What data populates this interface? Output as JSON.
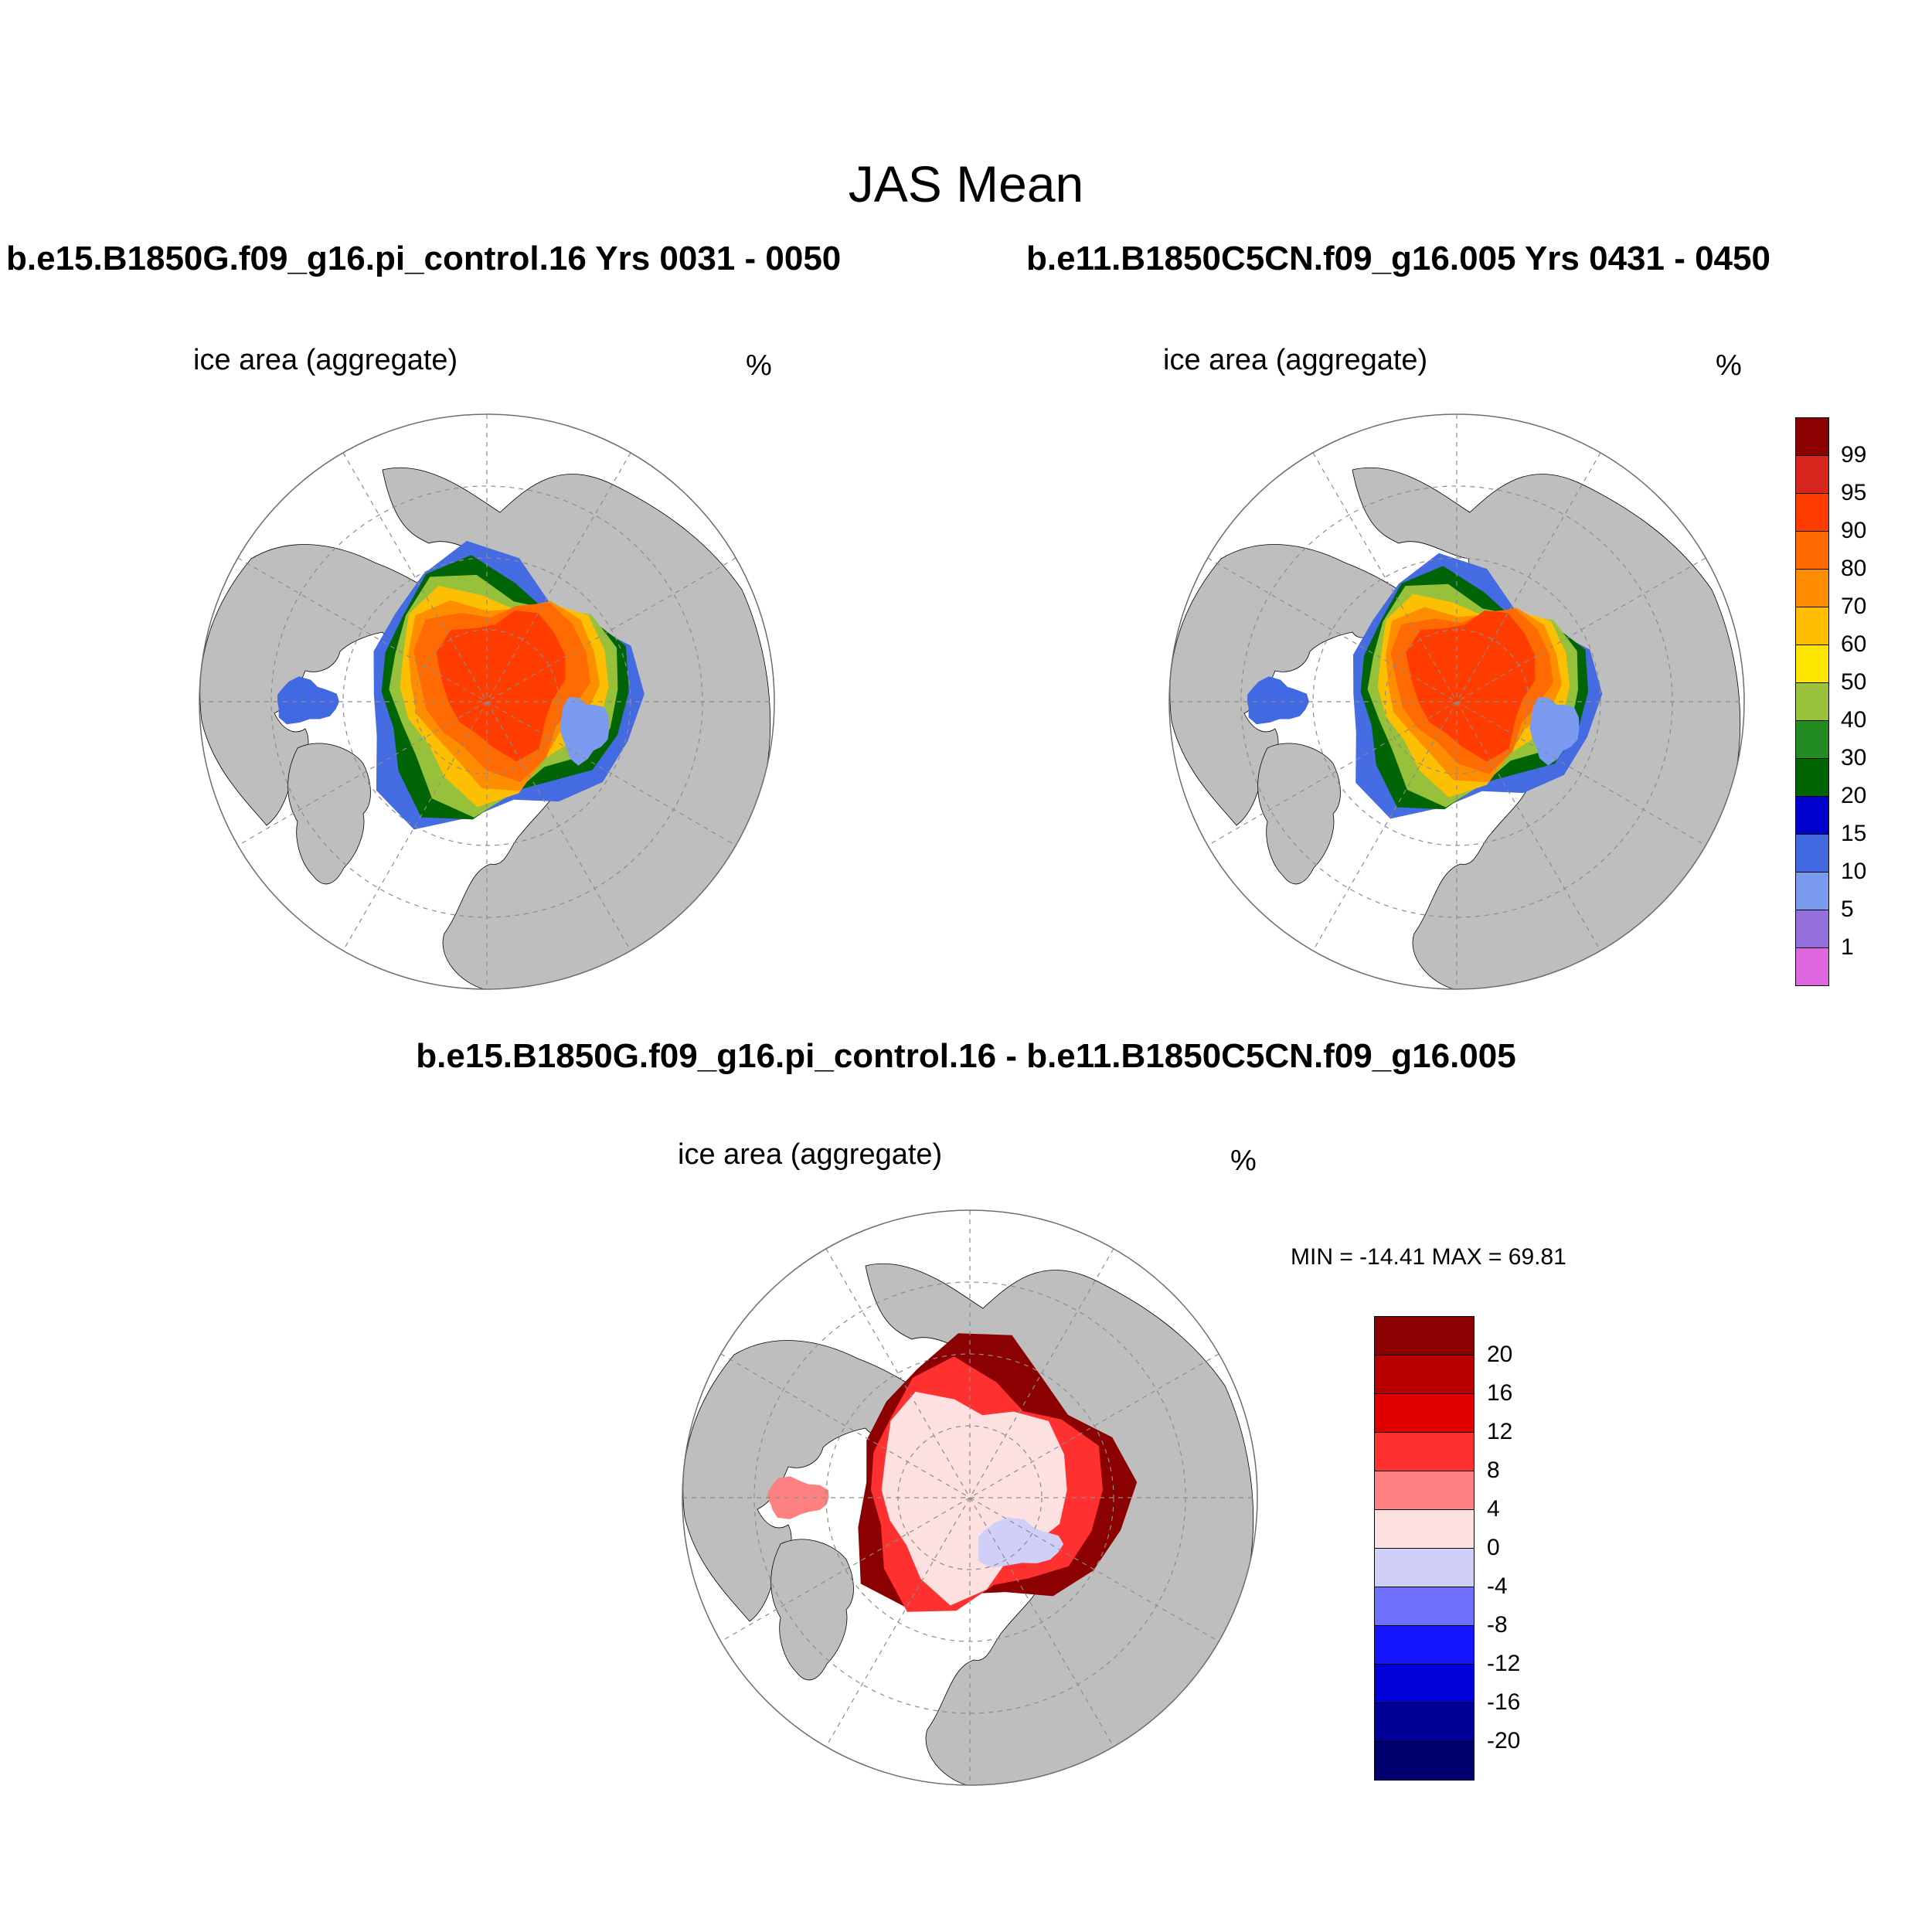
{
  "figure": {
    "title": "JAS Mean",
    "panels": [
      {
        "title": "b.e15.B1850G.f09_g16.pi_control.16  Yrs 0031 - 0050",
        "variable": "ice area  (aggregate)",
        "units": "%"
      },
      {
        "title": "b.e11.B1850C5CN.f09_g16.005  Yrs 0431 - 0450",
        "variable": "ice area  (aggregate)",
        "units": "%"
      },
      {
        "title": "b.e15.B1850G.f09_g16.pi_control.16 - b.e11.B1850C5CN.f09_g16.005",
        "variable": "ice area  (aggregate)",
        "units": "%",
        "min_max": "MIN = -14.41 MAX =  69.81"
      }
    ]
  },
  "colorbars": {
    "ice_area": {
      "labels": [
        "99",
        "95",
        "90",
        "80",
        "70",
        "60",
        "50",
        "40",
        "30",
        "20",
        "15",
        "10",
        "5",
        "1"
      ],
      "colors": [
        "#8b0000",
        "#d7261e",
        "#ff3c00",
        "#ff6a00",
        "#ff8c00",
        "#ffbf00",
        "#ffe600",
        "#9ac23c",
        "#228b22",
        "#006400",
        "#0000cd",
        "#4169e1",
        "#7b9bf0",
        "#9370db",
        "#e066e0"
      ]
    },
    "difference": {
      "labels": [
        "20",
        "16",
        "12",
        "8",
        "4",
        "0",
        "-4",
        "-8",
        "-12",
        "-16",
        "-20"
      ],
      "colors": [
        "#8b0000",
        "#b80000",
        "#e00000",
        "#ff3030",
        "#ff8080",
        "#fde0e0",
        "#cfcff8",
        "#7070ff",
        "#1414ff",
        "#0000d8",
        "#000098",
        "#000070"
      ]
    }
  },
  "map_colors": {
    "land": "#bebebe",
    "ocean": "#ffffff",
    "grid": "#8c8c8c"
  }
}
